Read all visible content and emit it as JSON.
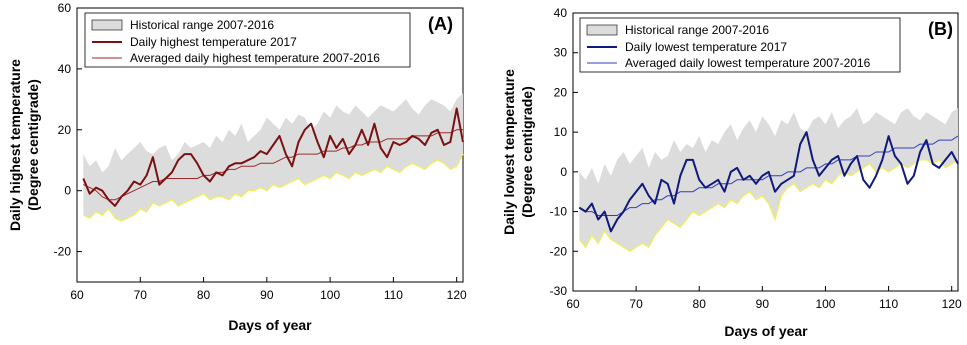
{
  "chart_data": [
    {
      "type": "line",
      "panel_label": "(A)",
      "xlabel": "Days of year",
      "ylabel_line1": "Daily highest temperature",
      "ylabel_line2": "(Degree centigrade)",
      "xlim": [
        60,
        121
      ],
      "ylim": [
        -30,
        60
      ],
      "xticks": [
        60,
        70,
        80,
        90,
        100,
        110,
        120
      ],
      "yticks": [
        -20,
        0,
        20,
        40,
        60
      ],
      "legend_position": "top-left",
      "colors": {
        "band": "#dcdcdc",
        "band_edge": "#f2ef56",
        "observed": "#7a1111",
        "average": "#9c2a2a"
      },
      "x": [
        61,
        62,
        63,
        64,
        65,
        66,
        67,
        68,
        69,
        70,
        71,
        72,
        73,
        74,
        75,
        76,
        77,
        78,
        79,
        80,
        81,
        82,
        83,
        84,
        85,
        86,
        87,
        88,
        89,
        90,
        91,
        92,
        93,
        94,
        95,
        96,
        97,
        98,
        99,
        100,
        101,
        102,
        103,
        104,
        105,
        106,
        107,
        108,
        109,
        110,
        111,
        112,
        113,
        114,
        115,
        116,
        117,
        118,
        119,
        120,
        121
      ],
      "series": [
        {
          "name": "Historical range 2007-2016",
          "kind": "band",
          "upper": [
            12,
            8,
            10,
            6,
            8,
            14,
            10,
            12,
            14,
            16,
            13,
            12,
            14,
            15,
            10,
            12,
            16,
            14,
            15,
            16,
            14,
            18,
            16,
            20,
            18,
            22,
            16,
            18,
            20,
            24,
            22,
            20,
            24,
            22,
            25,
            24,
            20,
            22,
            26,
            24,
            28,
            26,
            25,
            28,
            26,
            24,
            26,
            28,
            27,
            26,
            28,
            30,
            27,
            25,
            28,
            30,
            29,
            28,
            26,
            30,
            32
          ],
          "lower": [
            -8,
            -9,
            -7,
            -8,
            -6,
            -9,
            -10,
            -9,
            -8,
            -6,
            -7,
            -4,
            -5,
            -4,
            -3,
            -5,
            -4,
            -3,
            -2,
            -1,
            -3,
            -2,
            -2,
            -3,
            -1,
            -2,
            0,
            0,
            1,
            0,
            2,
            1,
            2,
            3,
            4,
            2,
            3,
            4,
            5,
            4,
            6,
            5,
            4,
            6,
            5,
            6,
            7,
            6,
            8,
            7,
            6,
            8,
            9,
            8,
            7,
            9,
            10,
            9,
            7,
            8,
            12
          ]
        },
        {
          "name": "Daily highest temperature 2017",
          "kind": "line",
          "values": [
            4,
            -1,
            1,
            0,
            -3,
            -5,
            -2,
            0,
            3,
            2,
            5,
            11,
            2,
            4,
            6,
            10,
            12,
            12,
            9,
            5,
            3,
            6,
            5,
            8,
            9,
            9,
            10,
            11,
            13,
            12,
            15,
            18,
            12,
            8,
            16,
            20,
            22,
            16,
            11,
            18,
            14,
            17,
            12,
            15,
            20,
            15,
            22,
            14,
            11,
            16,
            15,
            16,
            18,
            17,
            15,
            19,
            20,
            15,
            16,
            27,
            16
          ]
        },
        {
          "name": "Averaged daily highest temperature 2007-2016",
          "kind": "line",
          "values": [
            2,
            1,
            0,
            -2,
            -3,
            -3,
            -2,
            -1,
            0,
            1,
            2,
            3,
            3,
            4,
            4,
            4,
            4,
            4,
            4,
            5,
            5,
            6,
            6,
            7,
            7,
            8,
            8,
            8,
            9,
            9,
            9,
            10,
            11,
            11,
            12,
            12,
            12,
            12,
            13,
            13,
            13,
            14,
            14,
            15,
            15,
            16,
            16,
            16,
            17,
            17,
            17,
            17,
            18,
            18,
            18,
            18,
            19,
            19,
            19,
            20,
            20
          ]
        }
      ]
    },
    {
      "type": "line",
      "panel_label": "(B)",
      "xlabel": "Days of year",
      "ylabel_line1": "Daily lowest temperature",
      "ylabel_line2": "(Degree centigrade)",
      "xlim": [
        60,
        121
      ],
      "ylim": [
        -30,
        40
      ],
      "xticks": [
        60,
        70,
        80,
        90,
        100,
        110,
        120
      ],
      "yticks": [
        -30,
        -20,
        -10,
        0,
        10,
        20,
        30,
        40
      ],
      "legend_position": "top-left",
      "colors": {
        "band": "#dcdcdc",
        "band_edge": "#f2ef56",
        "observed": "#0f1a7a",
        "average": "#2f3fbf"
      },
      "x": [
        61,
        62,
        63,
        64,
        65,
        66,
        67,
        68,
        69,
        70,
        71,
        72,
        73,
        74,
        75,
        76,
        77,
        78,
        79,
        80,
        81,
        82,
        83,
        84,
        85,
        86,
        87,
        88,
        89,
        90,
        91,
        92,
        93,
        94,
        95,
        96,
        97,
        98,
        99,
        100,
        101,
        102,
        103,
        104,
        105,
        106,
        107,
        108,
        109,
        110,
        111,
        112,
        113,
        114,
        115,
        116,
        117,
        118,
        119,
        120,
        121
      ],
      "series": [
        {
          "name": "Historical range 2007-2016",
          "kind": "band",
          "upper": [
            0,
            -2,
            1,
            -3,
            2,
            -1,
            3,
            5,
            2,
            4,
            6,
            1,
            5,
            3,
            4,
            8,
            5,
            7,
            6,
            9,
            5,
            8,
            7,
            10,
            12,
            8,
            11,
            13,
            10,
            14,
            12,
            9,
            13,
            12,
            15,
            11,
            10,
            13,
            14,
            12,
            15,
            11,
            13,
            14,
            16,
            12,
            13,
            15,
            14,
            13,
            12,
            15,
            16,
            14,
            13,
            15,
            14,
            13,
            12,
            15,
            16
          ],
          "lower": [
            -17,
            -19,
            -16,
            -18,
            -15,
            -17,
            -18,
            -19,
            -20,
            -19,
            -18,
            -19,
            -16,
            -14,
            -12,
            -13,
            -14,
            -12,
            -10,
            -11,
            -10,
            -9,
            -8,
            -9,
            -7,
            -8,
            -6,
            -5,
            -7,
            -6,
            -8,
            -12,
            -6,
            -4,
            -3,
            -5,
            -4,
            -3,
            -4,
            -2,
            -3,
            -1,
            0,
            -1,
            0,
            1,
            2,
            0,
            1,
            0,
            1,
            2,
            1,
            2,
            3,
            3,
            2,
            3,
            1,
            2,
            3
          ]
        },
        {
          "name": "Daily lowest temperature 2017",
          "kind": "line",
          "values": [
            -9,
            -10,
            -8,
            -12,
            -10,
            -15,
            -12,
            -10,
            -7,
            -5,
            -3,
            -6,
            -8,
            -2,
            -3,
            -8,
            -1,
            3,
            3,
            -2,
            -4,
            -3,
            -2,
            -5,
            0,
            1,
            -2,
            -1,
            -3,
            -1,
            0,
            -5,
            -3,
            -2,
            -1,
            7,
            10,
            3,
            -1,
            1,
            3,
            4,
            -1,
            2,
            4,
            -2,
            -4,
            -1,
            3,
            9,
            4,
            2,
            -3,
            -1,
            5,
            8,
            2,
            1,
            3,
            5,
            2
          ]
        },
        {
          "name": "Averaged daily lowest temperature 2007-2016",
          "kind": "line",
          "values": [
            -9,
            -10,
            -10,
            -11,
            -11,
            -11,
            -11,
            -10,
            -9,
            -9,
            -8,
            -8,
            -7,
            -7,
            -6,
            -6,
            -5,
            -5,
            -5,
            -4,
            -4,
            -4,
            -3,
            -3,
            -3,
            -2,
            -2,
            -2,
            -2,
            -2,
            -1,
            -1,
            -1,
            0,
            0,
            0,
            1,
            1,
            1,
            2,
            2,
            3,
            3,
            3,
            4,
            4,
            4,
            5,
            5,
            5,
            6,
            6,
            6,
            6,
            7,
            7,
            7,
            8,
            8,
            8,
            9
          ]
        }
      ]
    }
  ]
}
